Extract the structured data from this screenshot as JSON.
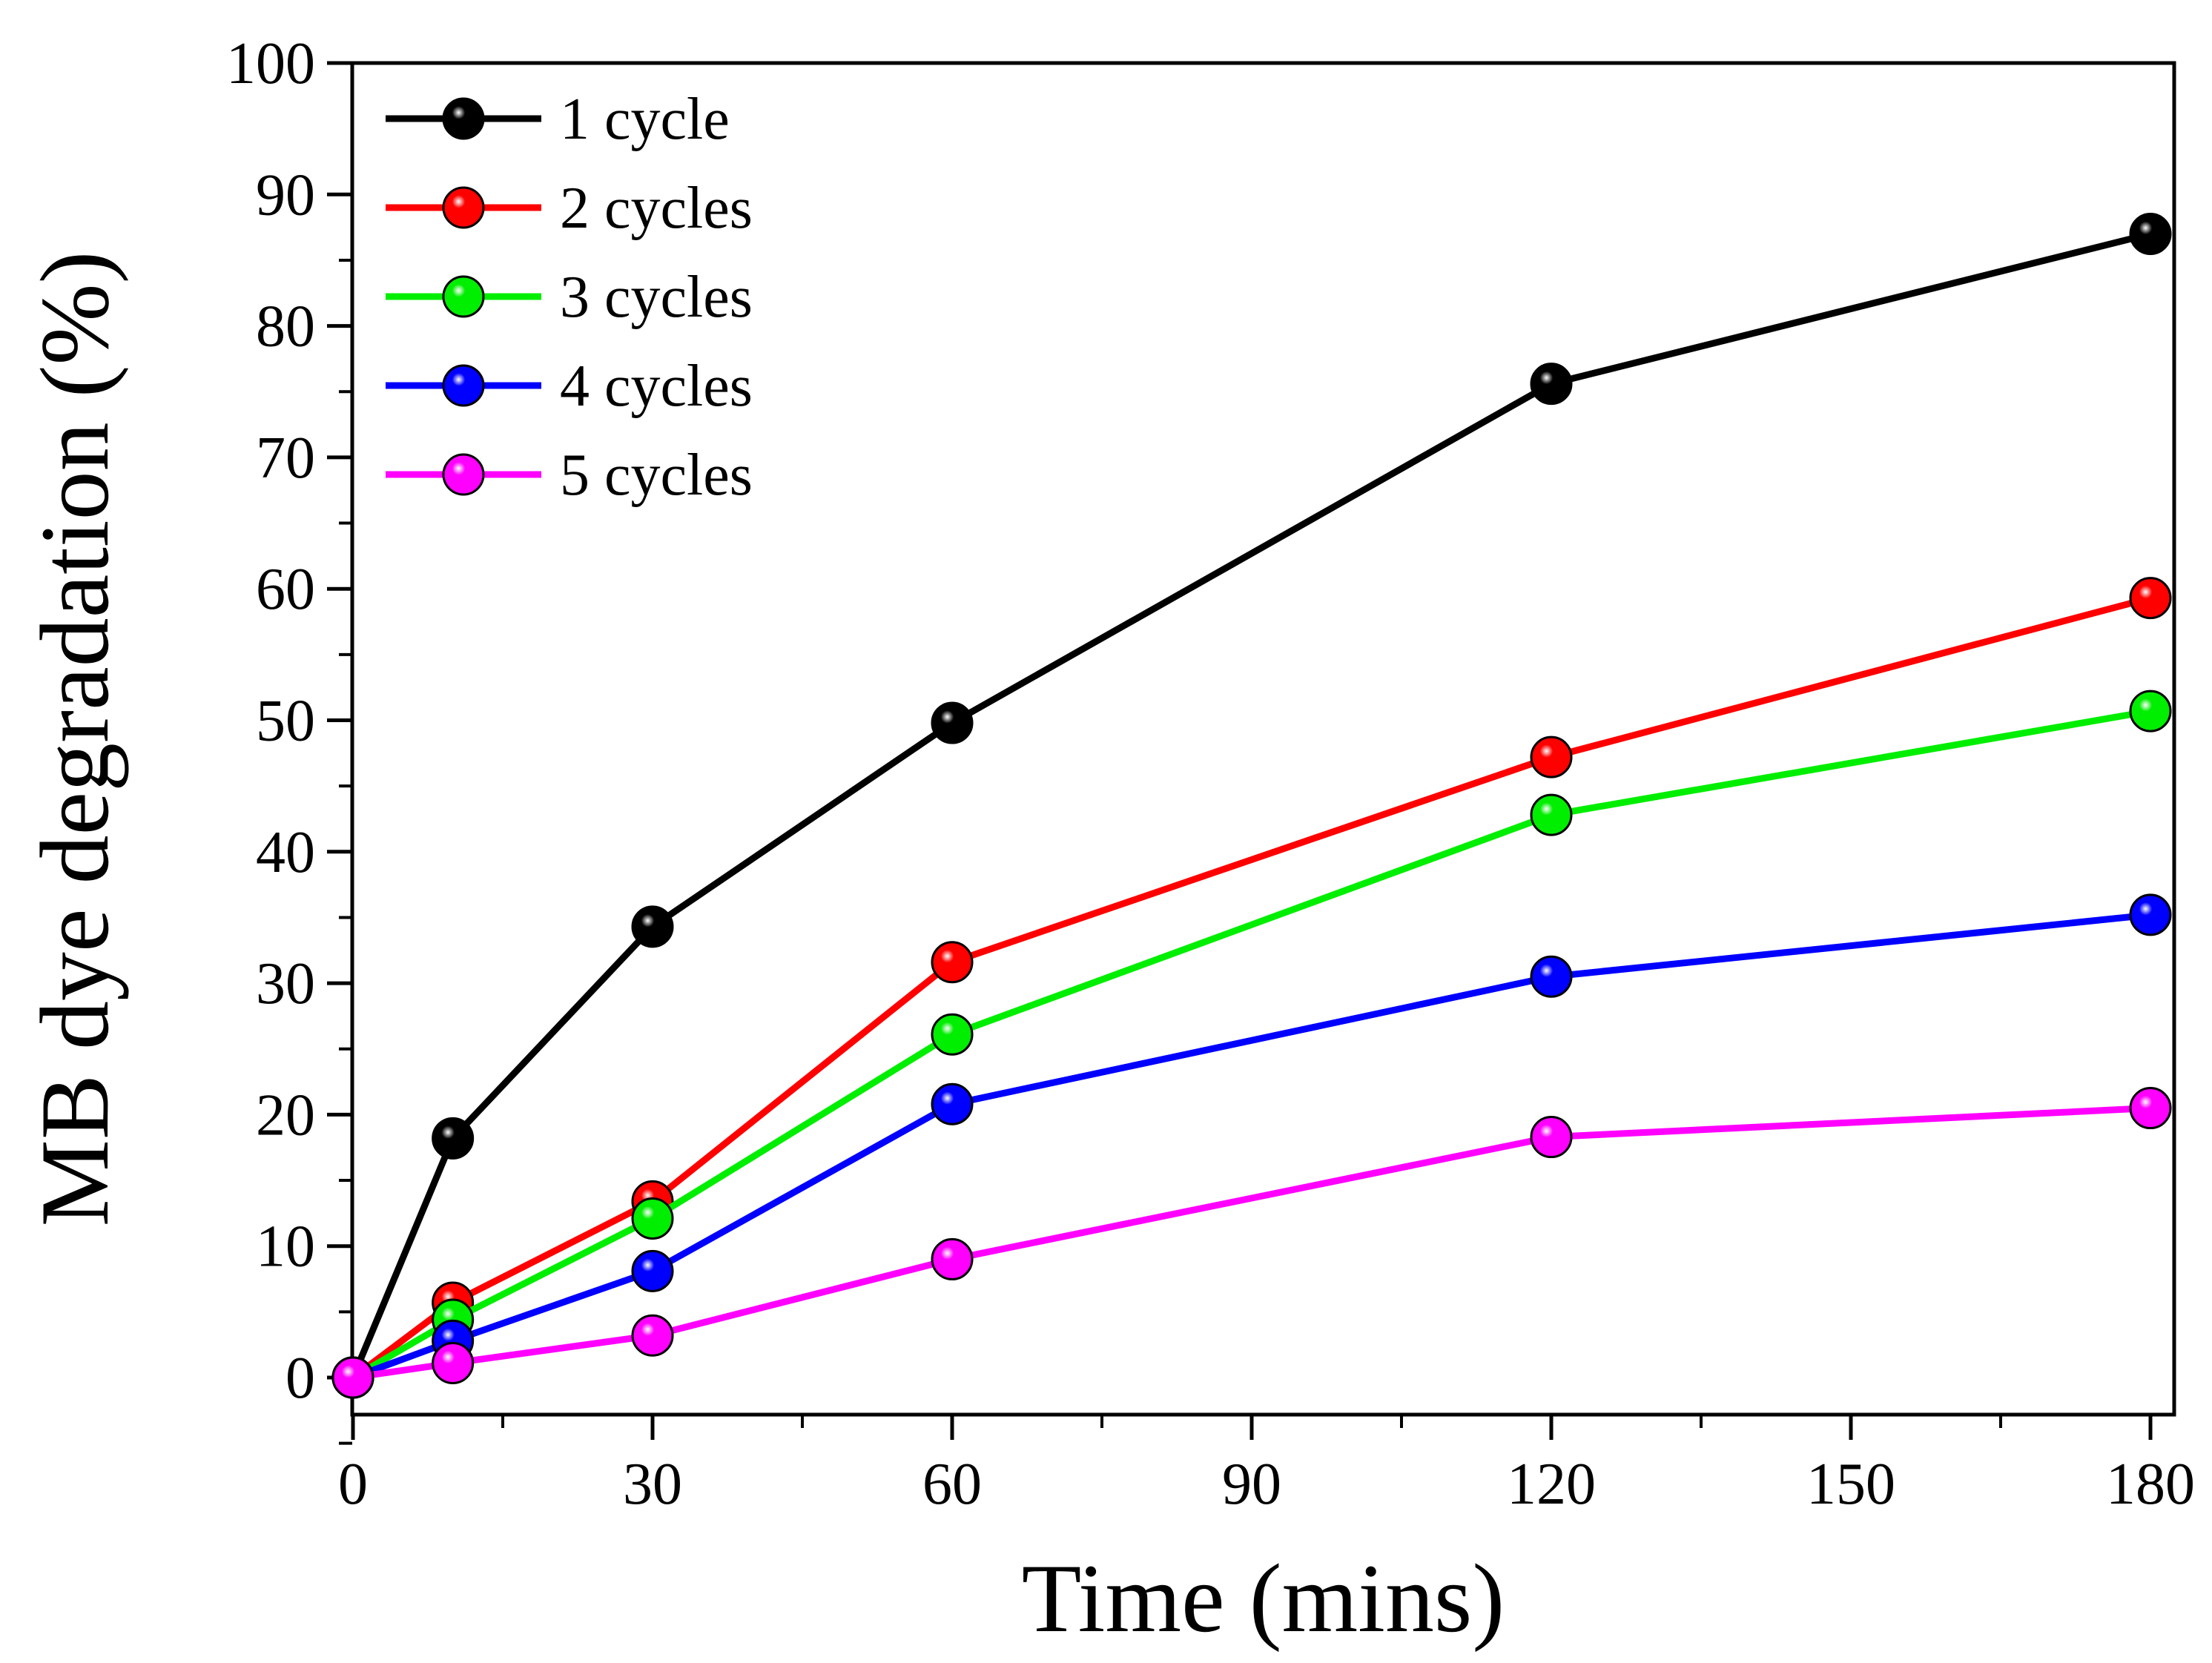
{
  "chart_data": {
    "type": "line",
    "title": "",
    "xlabel": "Time (mins)",
    "ylabel": "MB dye degradation (%)",
    "xlim": [
      0,
      180
    ],
    "ylim": [
      0,
      100
    ],
    "xticks": [
      0,
      30,
      60,
      90,
      120,
      150,
      180
    ],
    "yticks": [
      0,
      10,
      20,
      30,
      40,
      50,
      60,
      70,
      80,
      90,
      100
    ],
    "x": [
      0,
      10,
      30,
      60,
      120,
      180
    ],
    "legend_position": "top-left",
    "grid": false,
    "series": [
      {
        "name": "1 cycle",
        "color": "#000000",
        "values": [
          0,
          18.2,
          34.3,
          49.8,
          75.6,
          87.0
        ]
      },
      {
        "name": "2 cycles",
        "color": "#ff0000",
        "values": [
          0,
          5.7,
          13.4,
          31.6,
          47.2,
          59.3
        ]
      },
      {
        "name": "3 cycles",
        "color": "#00ee00",
        "values": [
          0,
          4.4,
          12.1,
          26.1,
          42.8,
          50.7
        ]
      },
      {
        "name": "4 cycles",
        "color": "#0000ff",
        "values": [
          0,
          2.8,
          8.1,
          20.8,
          30.5,
          35.2
        ]
      },
      {
        "name": "5 cycles",
        "color": "#ff00ff",
        "values": [
          0,
          1.1,
          3.2,
          9.0,
          18.3,
          20.5
        ]
      }
    ]
  }
}
